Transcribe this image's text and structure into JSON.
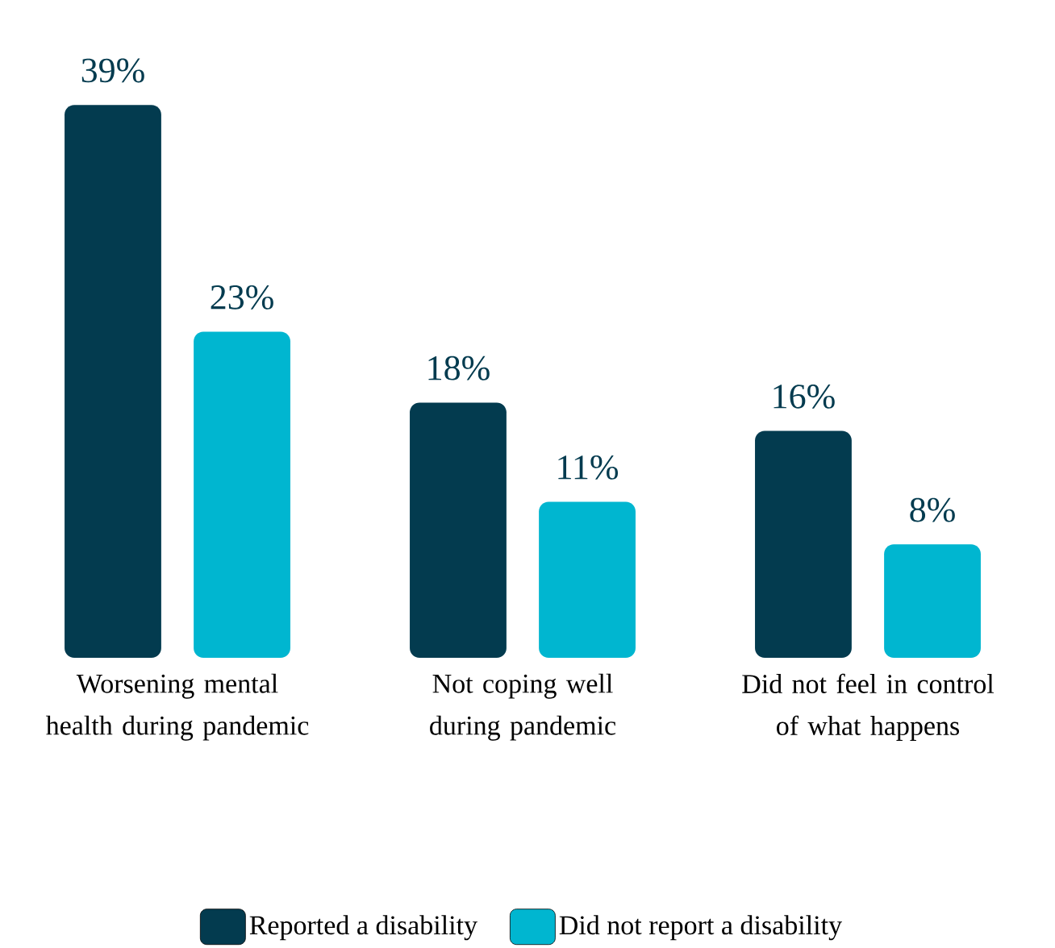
{
  "chart_data": {
    "type": "bar",
    "categories": [
      "Worsening mental health during pandemic",
      "Not coping well during pandemic",
      "Did not feel in control of what happens"
    ],
    "series": [
      {
        "name": "Reported a disability",
        "color": "#033b4f",
        "values": [
          39,
          18,
          16
        ],
        "value_labels": [
          "39%",
          "18%",
          "16%"
        ]
      },
      {
        "name": "Did not report a disability",
        "color": "#00b6d0",
        "values": [
          23,
          11,
          8
        ],
        "value_labels": [
          "23%",
          "11%",
          "8%"
        ]
      }
    ],
    "legend": "bottom"
  }
}
